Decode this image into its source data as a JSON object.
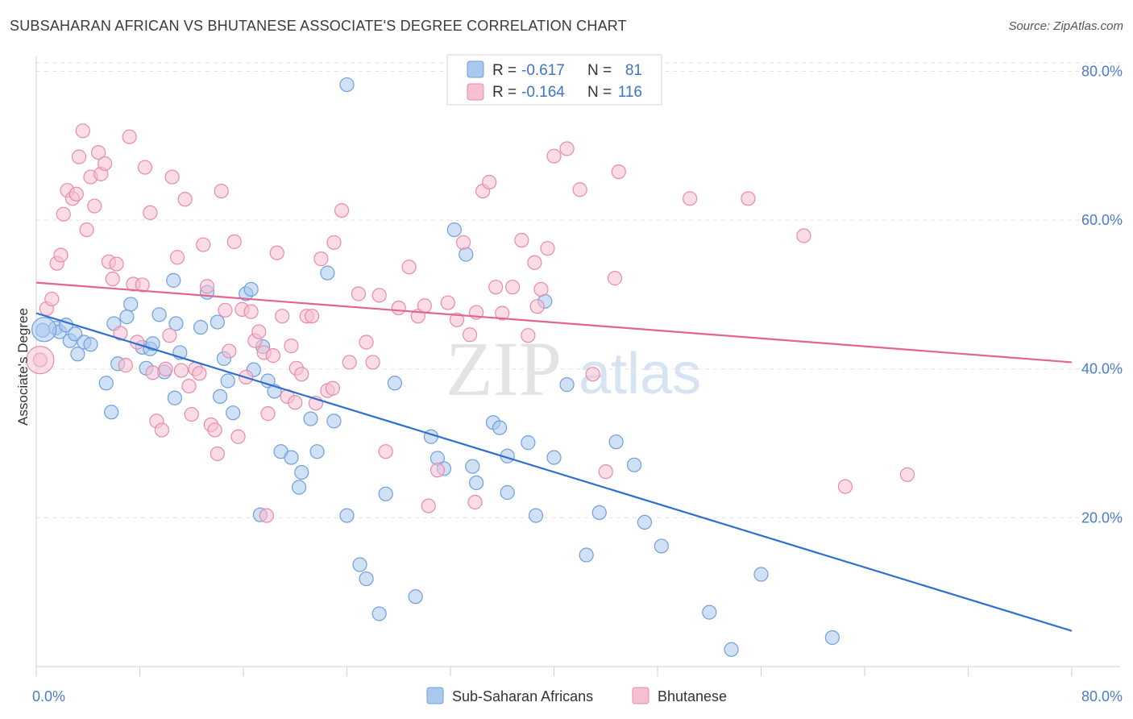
{
  "header": {
    "title": "SUBSAHARAN AFRICAN VS BHUTANESE ASSOCIATE'S DEGREE CORRELATION CHART",
    "source": "Source: ZipAtlas.com"
  },
  "watermark": {
    "zip": "ZIP",
    "atlas": "atlas"
  },
  "legend": {
    "blue": {
      "r_label": "R =",
      "r_value": "-0.617",
      "n_label": "N =",
      "n_value": "81"
    },
    "pink": {
      "r_label": "R =",
      "r_value": "-0.164",
      "n_label": "N =",
      "n_value": "116"
    }
  },
  "colors": {
    "blue_fill": "#aac8ee",
    "blue_stroke": "#6f9fdb",
    "blue_line": "#2f6fcc",
    "pink_fill": "#f7c0d2",
    "pink_stroke": "#e88aaa",
    "pink_line": "#e06690",
    "grid": "#e2e2e2",
    "tick_text": "#4a7cc9"
  },
  "chart_data": {
    "type": "scatter",
    "title": "SUBSAHARAN AFRICAN VS BHUTANESE ASSOCIATE'S DEGREE CORRELATION CHART",
    "xlabel": "",
    "ylabel": "Associate's Degree",
    "xlim": [
      0,
      80
    ],
    "ylim": [
      0,
      82
    ],
    "x_tick_labels": [
      {
        "value": 0,
        "label": "0.0%"
      },
      {
        "value": 80,
        "label": "80.0%"
      }
    ],
    "y_tick_labels": [
      {
        "value": 20,
        "label": "20.0%"
      },
      {
        "value": 40,
        "label": "40.0%"
      },
      {
        "value": 60,
        "label": "60.0%"
      },
      {
        "value": 80,
        "label": "80.0%"
      }
    ],
    "grid": true,
    "legend_position": "top-center",
    "series": [
      {
        "name": "Sub-Saharan Africans",
        "color": "#aac8ee",
        "trend": {
          "x": [
            0,
            80
          ],
          "y": [
            47.5,
            4.8
          ]
        },
        "points": [
          [
            0.5,
            45.2
          ],
          [
            1.5,
            45.5
          ],
          [
            1.8,
            45.0
          ],
          [
            2.3,
            45.9
          ],
          [
            2.6,
            43.8
          ],
          [
            3.0,
            44.7
          ],
          [
            3.2,
            42.0
          ],
          [
            3.7,
            43.6
          ],
          [
            4.2,
            43.3
          ],
          [
            6.0,
            46.1
          ],
          [
            7.3,
            48.7
          ],
          [
            6.3,
            40.7
          ],
          [
            5.4,
            38.1
          ],
          [
            7.0,
            47.0
          ],
          [
            8.2,
            42.9
          ],
          [
            8.5,
            40.1
          ],
          [
            8.8,
            42.7
          ],
          [
            9.0,
            43.4
          ],
          [
            9.5,
            47.3
          ],
          [
            9.9,
            39.6
          ],
          [
            10.6,
            51.9
          ],
          [
            10.8,
            46.1
          ],
          [
            11.1,
            42.2
          ],
          [
            12.7,
            45.6
          ],
          [
            13.2,
            50.3
          ],
          [
            14.0,
            46.3
          ],
          [
            14.5,
            41.4
          ],
          [
            14.8,
            38.4
          ],
          [
            16.2,
            50.1
          ],
          [
            16.6,
            50.7
          ],
          [
            16.8,
            39.9
          ],
          [
            17.5,
            43.0
          ],
          [
            17.9,
            38.4
          ],
          [
            18.4,
            37.0
          ],
          [
            18.9,
            28.9
          ],
          [
            20.3,
            24.1
          ],
          [
            20.5,
            26.1
          ],
          [
            21.2,
            33.3
          ],
          [
            21.7,
            28.9
          ],
          [
            22.5,
            52.9
          ],
          [
            23.0,
            33.0
          ],
          [
            24.0,
            20.3
          ],
          [
            25.0,
            13.7
          ],
          [
            25.5,
            11.8
          ],
          [
            26.5,
            7.1
          ],
          [
            27.0,
            23.2
          ],
          [
            27.7,
            38.1
          ],
          [
            29.3,
            9.4
          ],
          [
            30.5,
            30.9
          ],
          [
            31.0,
            28.0
          ],
          [
            31.5,
            26.6
          ],
          [
            32.3,
            58.7
          ],
          [
            33.2,
            55.4
          ],
          [
            33.7,
            26.9
          ],
          [
            34.0,
            24.7
          ],
          [
            35.3,
            32.8
          ],
          [
            35.8,
            32.1
          ],
          [
            36.4,
            28.3
          ],
          [
            38.0,
            30.1
          ],
          [
            38.6,
            20.3
          ],
          [
            39.3,
            49.1
          ],
          [
            40.0,
            28.1
          ],
          [
            41.0,
            37.9
          ],
          [
            42.5,
            15.0
          ],
          [
            43.5,
            20.7
          ],
          [
            46.2,
            27.1
          ],
          [
            47.0,
            19.4
          ],
          [
            48.3,
            16.2
          ],
          [
            52.0,
            7.3
          ],
          [
            53.7,
            2.3
          ],
          [
            56.0,
            12.4
          ],
          [
            61.5,
            3.9
          ],
          [
            24.0,
            78.2
          ],
          [
            36.4,
            23.4
          ],
          [
            15.2,
            34.1
          ],
          [
            19.7,
            28.1
          ],
          [
            5.8,
            34.2
          ],
          [
            10.7,
            36.1
          ],
          [
            14.2,
            36.3
          ],
          [
            17.3,
            20.4
          ],
          [
            44.8,
            30.2
          ]
        ]
      },
      {
        "name": "Bhutanese",
        "color": "#f7c0d2",
        "trend": {
          "x": [
            0,
            80
          ],
          "y": [
            51.6,
            40.9
          ]
        },
        "points": [
          [
            0.3,
            41.2
          ],
          [
            0.8,
            48.1
          ],
          [
            1.2,
            49.4
          ],
          [
            1.6,
            54.2
          ],
          [
            1.9,
            55.3
          ],
          [
            2.1,
            60.8
          ],
          [
            2.4,
            64.0
          ],
          [
            2.8,
            62.9
          ],
          [
            3.1,
            63.5
          ],
          [
            3.3,
            68.5
          ],
          [
            3.6,
            72.0
          ],
          [
            3.9,
            58.7
          ],
          [
            4.2,
            65.8
          ],
          [
            4.5,
            61.9
          ],
          [
            4.8,
            69.1
          ],
          [
            5.0,
            66.2
          ],
          [
            5.3,
            67.6
          ],
          [
            5.6,
            54.4
          ],
          [
            5.9,
            52.1
          ],
          [
            6.2,
            54.1
          ],
          [
            6.5,
            44.8
          ],
          [
            6.9,
            40.5
          ],
          [
            7.2,
            71.2
          ],
          [
            7.5,
            51.4
          ],
          [
            7.8,
            43.6
          ],
          [
            8.2,
            51.3
          ],
          [
            8.4,
            67.1
          ],
          [
            8.8,
            61.0
          ],
          [
            9.0,
            39.5
          ],
          [
            9.3,
            33.0
          ],
          [
            9.7,
            31.8
          ],
          [
            10.0,
            40.0
          ],
          [
            10.3,
            44.5
          ],
          [
            10.5,
            65.8
          ],
          [
            10.9,
            55.0
          ],
          [
            11.2,
            39.8
          ],
          [
            11.5,
            62.8
          ],
          [
            11.8,
            37.7
          ],
          [
            12.0,
            33.9
          ],
          [
            12.3,
            40.0
          ],
          [
            12.6,
            39.4
          ],
          [
            12.9,
            56.7
          ],
          [
            13.2,
            51.1
          ],
          [
            13.5,
            32.5
          ],
          [
            13.8,
            31.8
          ],
          [
            14.0,
            28.6
          ],
          [
            14.3,
            63.9
          ],
          [
            14.6,
            47.9
          ],
          [
            14.9,
            42.4
          ],
          [
            15.3,
            57.1
          ],
          [
            15.6,
            30.9
          ],
          [
            15.9,
            48.0
          ],
          [
            16.2,
            38.9
          ],
          [
            16.6,
            47.7
          ],
          [
            16.9,
            43.8
          ],
          [
            17.2,
            45.0
          ],
          [
            17.6,
            42.2
          ],
          [
            17.9,
            34.0
          ],
          [
            18.3,
            41.8
          ],
          [
            18.6,
            55.6
          ],
          [
            19.0,
            47.1
          ],
          [
            19.4,
            36.3
          ],
          [
            19.7,
            43.1
          ],
          [
            20.1,
            40.1
          ],
          [
            20.5,
            39.3
          ],
          [
            20.9,
            47.1
          ],
          [
            21.3,
            47.1
          ],
          [
            21.6,
            35.4
          ],
          [
            22.0,
            54.8
          ],
          [
            22.5,
            37.1
          ],
          [
            23.0,
            57.0
          ],
          [
            23.6,
            61.3
          ],
          [
            24.2,
            40.9
          ],
          [
            24.9,
            50.1
          ],
          [
            25.5,
            43.6
          ],
          [
            26.0,
            40.9
          ],
          [
            26.5,
            49.9
          ],
          [
            27.0,
            28.9
          ],
          [
            28.0,
            48.2
          ],
          [
            28.8,
            53.7
          ],
          [
            29.5,
            47.1
          ],
          [
            30.0,
            48.5
          ],
          [
            31.0,
            26.4
          ],
          [
            31.8,
            48.9
          ],
          [
            32.5,
            46.6
          ],
          [
            33.0,
            57.0
          ],
          [
            33.5,
            44.6
          ],
          [
            34.0,
            47.6
          ],
          [
            34.5,
            63.9
          ],
          [
            35.0,
            65.1
          ],
          [
            35.5,
            51.0
          ],
          [
            36.0,
            47.5
          ],
          [
            36.8,
            51.0
          ],
          [
            37.5,
            57.3
          ],
          [
            38.0,
            44.5
          ],
          [
            38.5,
            54.3
          ],
          [
            39.0,
            50.7
          ],
          [
            39.5,
            56.2
          ],
          [
            40.0,
            68.6
          ],
          [
            41.0,
            69.6
          ],
          [
            42.0,
            64.1
          ],
          [
            43.0,
            39.3
          ],
          [
            44.0,
            26.2
          ],
          [
            45.0,
            66.5
          ],
          [
            55.0,
            62.9
          ],
          [
            59.3,
            57.9
          ],
          [
            62.5,
            24.2
          ],
          [
            67.3,
            25.8
          ],
          [
            44.7,
            52.2
          ],
          [
            50.5,
            62.9
          ],
          [
            38.7,
            48.4
          ],
          [
            33.9,
            22.1
          ],
          [
            17.8,
            20.3
          ],
          [
            30.3,
            21.6
          ],
          [
            22.9,
            37.4
          ],
          [
            20.0,
            35.5
          ]
        ]
      }
    ]
  }
}
